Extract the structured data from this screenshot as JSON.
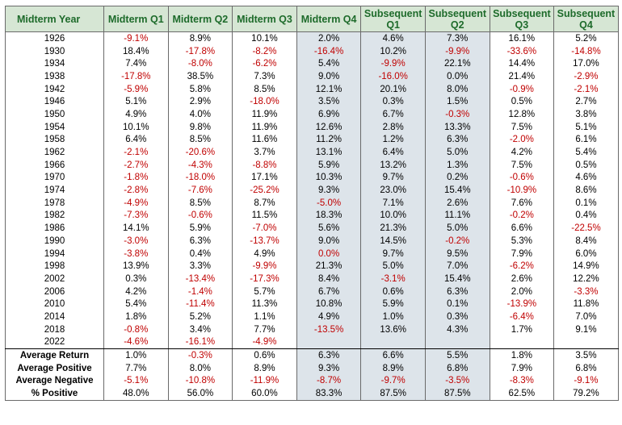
{
  "headers": [
    "Midterm Year",
    "Midterm Q1",
    "Midterm Q2",
    "Midterm Q3",
    "Midterm Q4",
    "Subsequent Q1",
    "Subsequent Q2",
    "Subsequent Q3",
    "Subsequent Q4"
  ],
  "rows": [
    [
      "1926",
      "-9.1%",
      "8.9%",
      "10.1%",
      "2.0%",
      "4.6%",
      "7.3%",
      "16.1%",
      "5.2%"
    ],
    [
      "1930",
      "18.4%",
      "-17.8%",
      "-8.2%",
      "-16.4%",
      "10.2%",
      "-9.9%",
      "-33.6%",
      "-14.8%"
    ],
    [
      "1934",
      "7.4%",
      "-8.0%",
      "-6.2%",
      "5.4%",
      "-9.9%",
      "22.1%",
      "14.4%",
      "17.0%"
    ],
    [
      "1938",
      "-17.8%",
      "38.5%",
      "7.3%",
      "9.0%",
      "-16.0%",
      "0.0%",
      "21.4%",
      "-2.9%"
    ],
    [
      "1942",
      "-5.9%",
      "5.8%",
      "8.5%",
      "12.1%",
      "20.1%",
      "8.0%",
      "-0.9%",
      "-2.1%"
    ],
    [
      "1946",
      "5.1%",
      "2.9%",
      "-18.0%",
      "3.5%",
      "0.3%",
      "1.5%",
      "0.5%",
      "2.7%"
    ],
    [
      "1950",
      "4.9%",
      "4.0%",
      "11.9%",
      "6.9%",
      "6.7%",
      "-0.3%",
      "12.8%",
      "3.8%"
    ],
    [
      "1954",
      "10.1%",
      "9.8%",
      "11.9%",
      "12.6%",
      "2.8%",
      "13.3%",
      "7.5%",
      "5.1%"
    ],
    [
      "1958",
      "6.4%",
      "8.5%",
      "11.6%",
      "11.2%",
      "1.2%",
      "6.3%",
      "-2.0%",
      "6.1%"
    ],
    [
      "1962",
      "-2.1%",
      "-20.6%",
      "3.7%",
      "13.1%",
      "6.4%",
      "5.0%",
      "4.2%",
      "5.4%"
    ],
    [
      "1966",
      "-2.7%",
      "-4.3%",
      "-8.8%",
      "5.9%",
      "13.2%",
      "1.3%",
      "7.5%",
      "0.5%"
    ],
    [
      "1970",
      "-1.8%",
      "-18.0%",
      "17.1%",
      "10.3%",
      "9.7%",
      "0.2%",
      "-0.6%",
      "4.6%"
    ],
    [
      "1974",
      "-2.8%",
      "-7.6%",
      "-25.2%",
      "9.3%",
      "23.0%",
      "15.4%",
      "-10.9%",
      "8.6%"
    ],
    [
      "1978",
      "-4.9%",
      "8.5%",
      "8.7%",
      "-5.0%",
      "7.1%",
      "2.6%",
      "7.6%",
      "0.1%"
    ],
    [
      "1982",
      "-7.3%",
      "-0.6%",
      "11.5%",
      "18.3%",
      "10.0%",
      "11.1%",
      "-0.2%",
      "0.4%"
    ],
    [
      "1986",
      "14.1%",
      "5.9%",
      "-7.0%",
      "5.6%",
      "21.3%",
      "5.0%",
      "6.6%",
      "-22.5%"
    ],
    [
      "1990",
      "-3.0%",
      "6.3%",
      "-13.7%",
      "9.0%",
      "14.5%",
      "-0.2%",
      "5.3%",
      "8.4%"
    ],
    [
      "1994",
      "-3.8%",
      "0.4%",
      "4.9%",
      "0.0%",
      "9.7%",
      "9.5%",
      "7.9%",
      "6.0%"
    ],
    [
      "1998",
      "13.9%",
      "3.3%",
      "-9.9%",
      "21.3%",
      "5.0%",
      "7.0%",
      "-6.2%",
      "14.9%"
    ],
    [
      "2002",
      "0.3%",
      "-13.4%",
      "-17.3%",
      "8.4%",
      "-3.1%",
      "15.4%",
      "2.6%",
      "12.2%"
    ],
    [
      "2006",
      "4.2%",
      "-1.4%",
      "5.7%",
      "6.7%",
      "0.6%",
      "6.3%",
      "2.0%",
      "-3.3%"
    ],
    [
      "2010",
      "5.4%",
      "-11.4%",
      "11.3%",
      "10.8%",
      "5.9%",
      "0.1%",
      "-13.9%",
      "11.8%"
    ],
    [
      "2014",
      "1.8%",
      "5.2%",
      "1.1%",
      "4.9%",
      "1.0%",
      "0.3%",
      "-6.4%",
      "7.0%"
    ],
    [
      "2018",
      "-0.8%",
      "3.4%",
      "7.7%",
      "-13.5%",
      "13.6%",
      "4.3%",
      "1.7%",
      "9.1%"
    ],
    [
      "2022",
      "-4.6%",
      "-16.1%",
      "-4.9%",
      "",
      "",
      "",
      "",
      ""
    ]
  ],
  "summary": [
    [
      "Average Return",
      "1.0%",
      "-0.3%",
      "0.6%",
      "6.3%",
      "6.6%",
      "5.5%",
      "1.8%",
      "3.5%"
    ],
    [
      "Average Positive",
      "7.7%",
      "8.0%",
      "8.9%",
      "9.3%",
      "8.9%",
      "6.8%",
      "7.9%",
      "6.8%"
    ],
    [
      "Average Negative",
      "-5.1%",
      "-10.8%",
      "-11.9%",
      "-8.7%",
      "-9.7%",
      "-3.5%",
      "-8.3%",
      "-9.1%"
    ],
    [
      "% Positive",
      "48.0%",
      "56.0%",
      "60.0%",
      "83.3%",
      "87.5%",
      "87.5%",
      "62.5%",
      "79.2%"
    ]
  ],
  "zero_value_negative": {
    "row": 17,
    "col": 4
  },
  "colors": {
    "header_bg": "#d6e6d4",
    "header_text": "#1e6b2b",
    "shaded_column_bg": "#dde4ea",
    "negative_text": "#c00000",
    "positive_text": "#000000"
  },
  "shaded_columns": [
    4,
    5,
    6
  ]
}
